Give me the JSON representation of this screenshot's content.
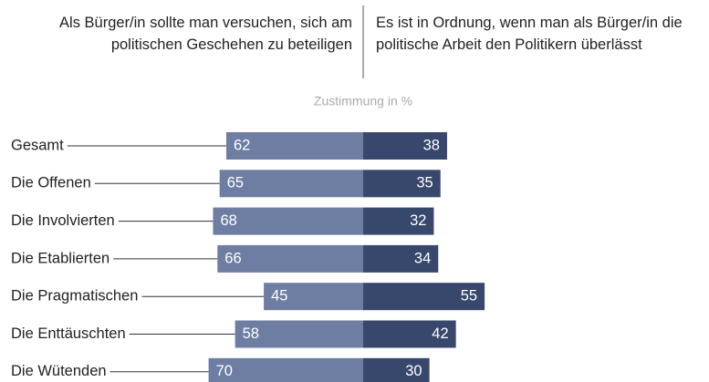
{
  "chart_data": {
    "type": "diverging_bar",
    "subtitle": "Zustimmung in %",
    "categories": [
      "Gesamt",
      "Die Offenen",
      "Die Involvierten",
      "Die Etablierten",
      "Die Pragmatischen",
      "Die Enttäuschten",
      "Die Wütenden"
    ],
    "series": [
      {
        "name": "Als Bürger/in sollte man versuchen, sich am politischen Geschehen zu beteiligen",
        "color": "#6e7ea3",
        "values": [
          62,
          65,
          68,
          66,
          45,
          58,
          70
        ]
      },
      {
        "name": "Es ist in Ordnung, wenn man als Bürger/in die politische Arbeit den Politikern überlässt",
        "color": "#38476c",
        "values": [
          38,
          35,
          32,
          34,
          55,
          42,
          30
        ]
      }
    ]
  }
}
